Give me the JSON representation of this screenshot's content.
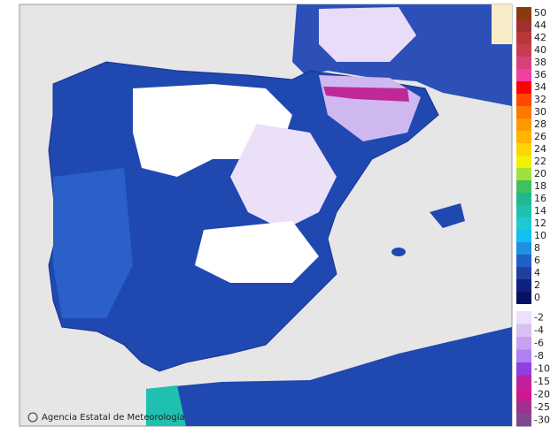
{
  "map": {
    "attribution": "Agencia Estatal de Meteorología"
  },
  "legend": {
    "upper": [
      {
        "label": "50",
        "color": "#8b3a10"
      },
      {
        "label": "44",
        "color": "#a03030"
      },
      {
        "label": "42",
        "color": "#b83838"
      },
      {
        "label": "40",
        "color": "#c83c50"
      },
      {
        "label": "38",
        "color": "#d8407c"
      },
      {
        "label": "36",
        "color": "#f040a0"
      },
      {
        "label": "34",
        "color": "#ff0000"
      },
      {
        "label": "32",
        "color": "#ff4800"
      },
      {
        "label": "30",
        "color": "#ff7800"
      },
      {
        "label": "28",
        "color": "#ff9800"
      },
      {
        "label": "26",
        "color": "#ffb400"
      },
      {
        "label": "24",
        "color": "#ffd400"
      },
      {
        "label": "22",
        "color": "#f0f000"
      },
      {
        "label": "20",
        "color": "#a0e040"
      },
      {
        "label": "18",
        "color": "#40c060"
      },
      {
        "label": "16",
        "color": "#20b890"
      },
      {
        "label": "14",
        "color": "#20c0b0"
      },
      {
        "label": "12",
        "color": "#20c8d0"
      },
      {
        "label": "10",
        "color": "#10c0f0"
      },
      {
        "label": "8",
        "color": "#2090e0"
      },
      {
        "label": "6",
        "color": "#2060c8"
      },
      {
        "label": "4",
        "color": "#2040a0"
      },
      {
        "label": "2",
        "color": "#102080"
      },
      {
        "label": "0",
        "color": "#081060"
      }
    ],
    "lower": [
      {
        "label": "-2",
        "color": "#ece0fa"
      },
      {
        "label": "-4",
        "color": "#d8c0f0"
      },
      {
        "label": "-6",
        "color": "#c8a0f0"
      },
      {
        "label": "-8",
        "color": "#b080f0"
      },
      {
        "label": "-10",
        "color": "#9040e0"
      },
      {
        "label": "-15",
        "color": "#c020a0"
      },
      {
        "label": "-20",
        "color": "#d01890"
      },
      {
        "label": "-25",
        "color": "#a03090"
      },
      {
        "label": "-30",
        "color": "#804890"
      }
    ]
  }
}
